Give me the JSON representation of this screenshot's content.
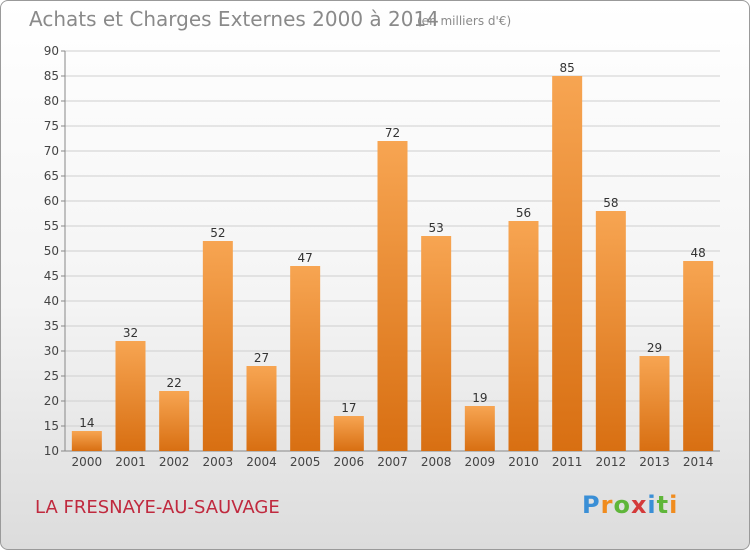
{
  "header": {
    "title": "Achats et Charges Externes 2000 à 2014",
    "subtitle": "(en milliers d'€)"
  },
  "footer": {
    "commune": "LA FRESNAYE-AU-SAUVAGE",
    "logo": {
      "letters": [
        "P",
        "r",
        "o",
        "x",
        "i",
        "t",
        "i"
      ],
      "colors": [
        "#3a8fd6",
        "#f08c1e",
        "#5fb63a",
        "#d43a3a",
        "#3a8fd6",
        "#5fb63a",
        "#f08c1e"
      ]
    }
  },
  "chart_data": {
    "type": "bar",
    "title": "Achats et Charges Externes 2000 à 2014",
    "subtitle": "(en milliers d'€)",
    "categories": [
      "2000",
      "2001",
      "2002",
      "2003",
      "2004",
      "2005",
      "2006",
      "2007",
      "2008",
      "2009",
      "2010",
      "2011",
      "2012",
      "2013",
      "2014"
    ],
    "values": [
      14,
      32,
      22,
      52,
      27,
      47,
      17,
      72,
      53,
      19,
      56,
      85,
      58,
      29,
      48
    ],
    "ylim": [
      10,
      90
    ],
    "yticks": [
      10,
      15,
      20,
      25,
      30,
      35,
      40,
      45,
      50,
      55,
      60,
      65,
      70,
      75,
      80,
      85,
      90
    ],
    "grid": true,
    "legend": "none",
    "colors": {
      "bar_top": "#f7a552",
      "bar_bottom": "#d86f12",
      "grid": "#cfcfcf"
    }
  }
}
